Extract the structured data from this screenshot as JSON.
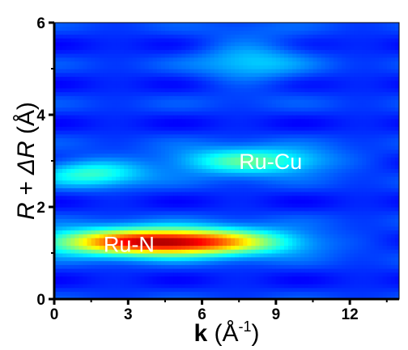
{
  "chart_data": {
    "type": "heatmap",
    "title": "",
    "xlabel_bold": "k",
    "xlabel_rest": " (Å",
    "xlabel_sup": "-1",
    "xlabel_close": ")",
    "ylabel_main": "R + ΔR",
    "ylabel_unit": " (Å)",
    "xlim": [
      0,
      14
    ],
    "ylim": [
      0,
      6
    ],
    "xticks": [
      0,
      3,
      6,
      9,
      12
    ],
    "yticks": [
      0,
      2,
      4,
      6
    ],
    "colormap": "jet",
    "peaks": [
      {
        "label": "Ru-N",
        "k_center": 4.5,
        "r_center": 1.25,
        "intensity": 1.0,
        "label_k": 2.0,
        "label_r": 1.2
      },
      {
        "label": "Ru-Cu",
        "k_center": 8.0,
        "r_center": 3.0,
        "intensity": 0.55,
        "label_k": 7.5,
        "label_r": 3.0
      }
    ]
  }
}
